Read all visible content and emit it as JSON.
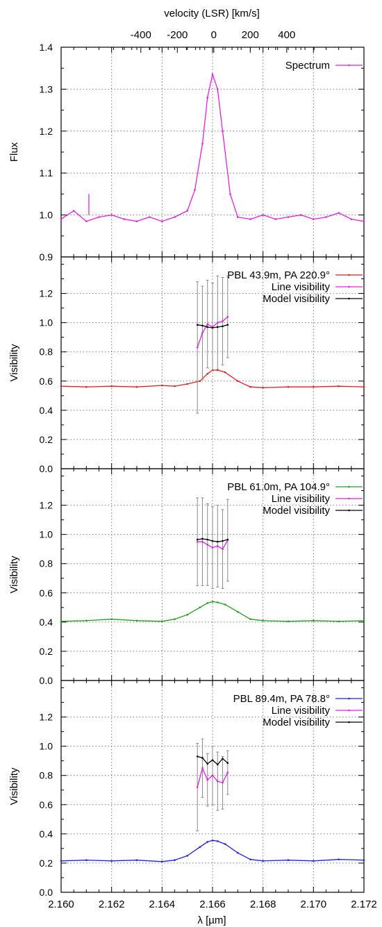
{
  "figure": {
    "top_axis_label": "velocity (LSR) [km/s]",
    "bottom_axis_label": "λ [µm]"
  },
  "chart_data": [
    {
      "type": "line",
      "ylabel": "Flux",
      "xlim": [
        2.16,
        2.172
      ],
      "ylim": [
        0.9,
        1.4
      ],
      "grid": true,
      "legend_position": "top-right",
      "x_ticks": [
        2.16,
        2.162,
        2.164,
        2.166,
        2.168,
        2.17,
        2.172
      ],
      "y_ticks": [
        0.9,
        1.0,
        1.1,
        1.2,
        1.3,
        1.4
      ],
      "y_tick_labels": [
        "0.9",
        "1.0",
        "1.1",
        "1.2",
        "1.3",
        "1.4"
      ],
      "top_axis": {
        "label": "velocity (LSR) [km/s]",
        "ticks": [
          -400,
          -200,
          0,
          200,
          400
        ],
        "tick_labels": [
          "-400",
          "-200",
          "0",
          "200",
          "400"
        ],
        "zero_at_wavelength": 2.16605,
        "km_s_per_um": 138400
      },
      "error_bar_marker": {
        "x": 2.1611,
        "y": 1.025,
        "yerr": 0.025
      },
      "series": [
        {
          "name": "Spectrum",
          "color": "#e020e0",
          "x": [
            2.16,
            2.1605,
            2.161,
            2.1615,
            2.162,
            2.1625,
            2.163,
            2.1635,
            2.164,
            2.1645,
            2.165,
            2.1653,
            2.1656,
            2.1658,
            2.166,
            2.1662,
            2.1664,
            2.1667,
            2.167,
            2.1675,
            2.168,
            2.1685,
            2.169,
            2.1695,
            2.17,
            2.1705,
            2.171,
            2.1715,
            2.172
          ],
          "y": [
            0.99,
            1.01,
            0.985,
            0.995,
            1.0,
            0.99,
            0.985,
            0.995,
            0.985,
            0.995,
            1.01,
            1.06,
            1.17,
            1.28,
            1.335,
            1.3,
            1.2,
            1.05,
            0.995,
            0.99,
            1.0,
            0.99,
            0.995,
            1.0,
            0.99,
            0.995,
            1.005,
            0.99,
            0.985
          ]
        }
      ]
    },
    {
      "type": "line",
      "ylabel": "Visibility",
      "xlim": [
        2.16,
        2.172
      ],
      "ylim": [
        0.0,
        1.45
      ],
      "grid": true,
      "legend_position": "top-right",
      "x_ticks": [
        2.16,
        2.162,
        2.164,
        2.166,
        2.168,
        2.17,
        2.172
      ],
      "y_ticks": [
        0.0,
        0.2,
        0.4,
        0.6,
        0.8,
        1.0,
        1.2
      ],
      "y_tick_labels": [
        "0.0",
        "0.2",
        "0.4",
        "0.6",
        "0.8",
        "1.0",
        "1.2"
      ],
      "series": [
        {
          "name": "PBL 43.9m, PA 220.9°",
          "color": "#e02020",
          "x": [
            2.16,
            2.161,
            2.162,
            2.163,
            2.164,
            2.1645,
            2.165,
            2.1655,
            2.1658,
            2.166,
            2.1662,
            2.1665,
            2.167,
            2.1675,
            2.168,
            2.169,
            2.17,
            2.171,
            2.172
          ],
          "y": [
            0.565,
            0.56,
            0.565,
            0.56,
            0.57,
            0.565,
            0.58,
            0.6,
            0.65,
            0.675,
            0.675,
            0.66,
            0.6,
            0.56,
            0.555,
            0.56,
            0.56,
            0.565,
            0.56
          ]
        },
        {
          "name": "Line visibility",
          "color": "#e020e0",
          "x": [
            2.1654,
            2.1656,
            2.1658,
            2.166,
            2.1662,
            2.1664,
            2.1666
          ],
          "y": [
            0.83,
            0.93,
            0.99,
            0.97,
            1.0,
            1.01,
            1.04
          ],
          "yerr": [
            0.45,
            0.32,
            0.3,
            0.3,
            0.32,
            0.3,
            0.28
          ]
        },
        {
          "name": "Model visibility",
          "color": "#000000",
          "x": [
            2.1654,
            2.1656,
            2.1658,
            2.166,
            2.1662,
            2.1664,
            2.1666
          ],
          "y": [
            0.985,
            0.98,
            0.97,
            0.965,
            0.97,
            0.975,
            0.985
          ]
        }
      ]
    },
    {
      "type": "line",
      "ylabel": "Visibility",
      "xlim": [
        2.16,
        2.172
      ],
      "ylim": [
        0.0,
        1.45
      ],
      "grid": true,
      "legend_position": "top-right",
      "x_ticks": [
        2.16,
        2.162,
        2.164,
        2.166,
        2.168,
        2.17,
        2.172
      ],
      "y_ticks": [
        0.0,
        0.2,
        0.4,
        0.6,
        0.8,
        1.0,
        1.2
      ],
      "y_tick_labels": [
        "0.0",
        "0.2",
        "0.4",
        "0.6",
        "0.8",
        "1.0",
        "1.2"
      ],
      "series": [
        {
          "name": "PBL 61.0m, PA 104.9°",
          "color": "#20a020",
          "x": [
            2.16,
            2.161,
            2.162,
            2.163,
            2.164,
            2.1645,
            2.165,
            2.1655,
            2.1658,
            2.166,
            2.1662,
            2.1665,
            2.167,
            2.1675,
            2.168,
            2.169,
            2.17,
            2.171,
            2.172
          ],
          "y": [
            0.405,
            0.41,
            0.42,
            0.41,
            0.405,
            0.42,
            0.45,
            0.5,
            0.53,
            0.54,
            0.535,
            0.52,
            0.47,
            0.42,
            0.41,
            0.405,
            0.41,
            0.405,
            0.41
          ]
        },
        {
          "name": "Line visibility",
          "color": "#e020e0",
          "x": [
            2.1654,
            2.1656,
            2.1658,
            2.166,
            2.1662,
            2.1664,
            2.1666
          ],
          "y": [
            0.95,
            0.95,
            0.93,
            0.91,
            0.92,
            0.9,
            0.96
          ],
          "yerr": [
            0.3,
            0.3,
            0.28,
            0.28,
            0.28,
            0.27,
            0.28
          ]
        },
        {
          "name": "Model visibility",
          "color": "#000000",
          "x": [
            2.1654,
            2.1656,
            2.1658,
            2.166,
            2.1662,
            2.1664,
            2.1666
          ],
          "y": [
            0.965,
            0.97,
            0.965,
            0.955,
            0.95,
            0.955,
            0.965
          ]
        }
      ]
    },
    {
      "type": "line",
      "ylabel": "Visibility",
      "xlim": [
        2.16,
        2.172
      ],
      "ylim": [
        0.0,
        1.45
      ],
      "grid": true,
      "legend_position": "top-right",
      "x_ticks": [
        2.16,
        2.162,
        2.164,
        2.166,
        2.168,
        2.17,
        2.172
      ],
      "x_tick_labels": [
        "2.160",
        "2.162",
        "2.164",
        "2.166",
        "2.168",
        "2.170",
        "2.172"
      ],
      "y_ticks": [
        0.0,
        0.2,
        0.4,
        0.6,
        0.8,
        1.0,
        1.2
      ],
      "y_tick_labels": [
        "0.0",
        "0.2",
        "0.4",
        "0.6",
        "0.8",
        "1.0",
        "1.2"
      ],
      "xlabel": "λ [µm]",
      "series": [
        {
          "name": "PBL 89.4m, PA  78.8°",
          "color": "#2020e0",
          "x": [
            2.16,
            2.161,
            2.162,
            2.163,
            2.164,
            2.1645,
            2.165,
            2.1655,
            2.1658,
            2.166,
            2.1662,
            2.1665,
            2.167,
            2.1675,
            2.168,
            2.169,
            2.17,
            2.171,
            2.172
          ],
          "y": [
            0.215,
            0.22,
            0.215,
            0.22,
            0.21,
            0.22,
            0.25,
            0.31,
            0.345,
            0.355,
            0.35,
            0.33,
            0.27,
            0.225,
            0.215,
            0.22,
            0.215,
            0.225,
            0.22
          ]
        },
        {
          "name": "Line visibility",
          "color": "#e020e0",
          "x": [
            2.1654,
            2.1656,
            2.1658,
            2.166,
            2.1662,
            2.1664,
            2.1666
          ],
          "y": [
            0.72,
            0.85,
            0.77,
            0.8,
            0.76,
            0.75,
            0.82
          ],
          "yerr": [
            0.3,
            0.2,
            0.18,
            0.2,
            0.2,
            0.18,
            0.15
          ]
        },
        {
          "name": "Model visibility",
          "color": "#000000",
          "x": [
            2.1654,
            2.1656,
            2.1658,
            2.166,
            2.1662,
            2.1664,
            2.1666
          ],
          "y": [
            0.93,
            0.92,
            0.88,
            0.905,
            0.875,
            0.915,
            0.885
          ]
        }
      ]
    }
  ]
}
